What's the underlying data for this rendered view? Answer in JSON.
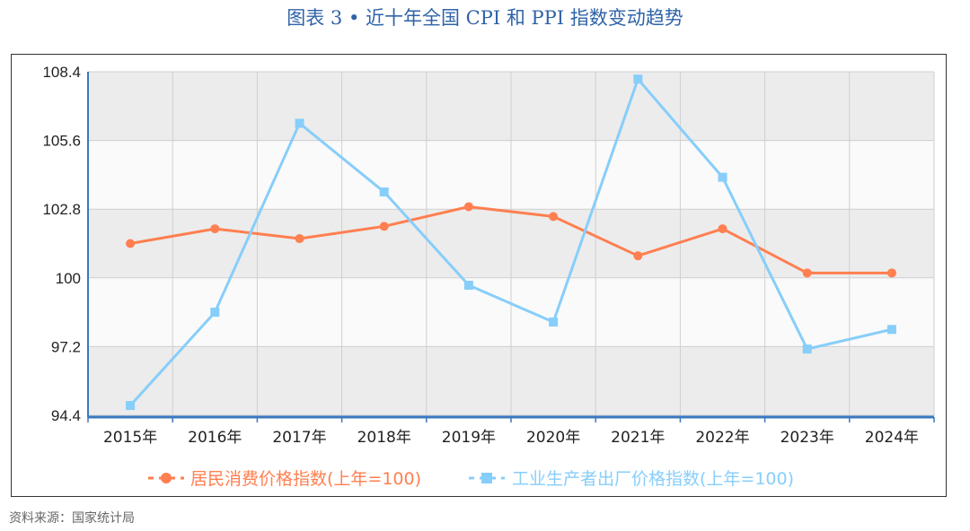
{
  "figure": {
    "title": "图表 3 • 近十年全国 CPI 和 PPI 指数变动趋势",
    "source": "资料来源：国家统计局"
  },
  "colors": {
    "cpi": "#ff7f50",
    "ppi": "#87cefa",
    "title": "#2f63a8",
    "axis": "#3a78c2",
    "band_dark": "#ececec",
    "band_light": "#fafafa",
    "grid": "#cfcfcf"
  },
  "chart_data": {
    "type": "line",
    "title": "",
    "xlabel": "",
    "ylabel": "",
    "categories": [
      "2015年",
      "2016年",
      "2017年",
      "2018年",
      "2019年",
      "2020年",
      "2021年",
      "2022年",
      "2023年",
      "2024年"
    ],
    "ylim": [
      94.4,
      108.4
    ],
    "yticks": [
      "94.4",
      "97.2",
      "100",
      "102.8",
      "105.6",
      "108.4"
    ],
    "grid": true,
    "legend_position": "bottom-center",
    "series": [
      {
        "name": "居民消费价格指数(上年=100)",
        "marker": "circle",
        "values": [
          101.4,
          102.0,
          101.6,
          102.1,
          102.9,
          102.5,
          100.9,
          102.0,
          100.2,
          100.2
        ]
      },
      {
        "name": "工业生产者出厂价格指数(上年=100)",
        "marker": "square",
        "values": [
          94.8,
          98.6,
          106.3,
          103.5,
          99.7,
          98.2,
          108.1,
          104.1,
          97.1,
          97.9
        ]
      }
    ]
  }
}
